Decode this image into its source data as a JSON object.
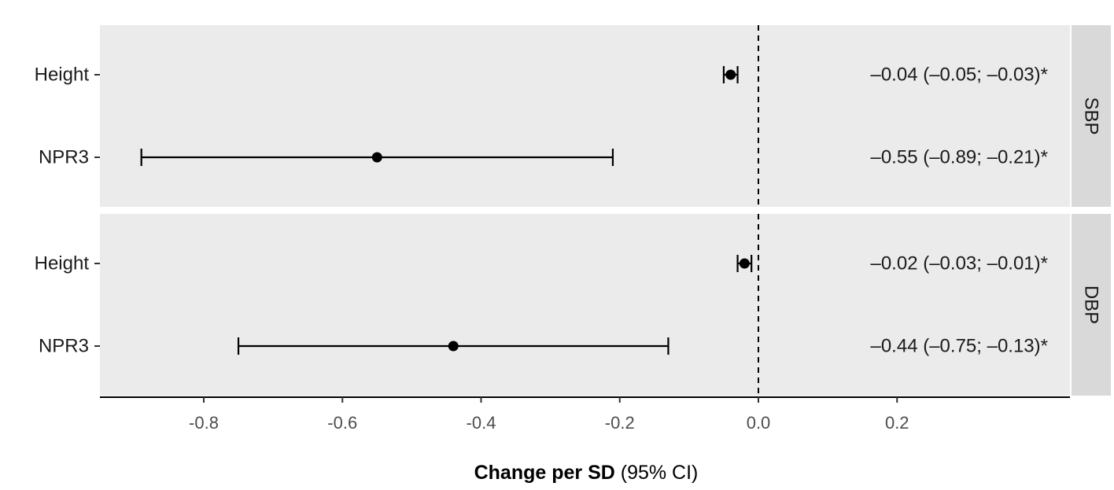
{
  "chart_data": {
    "type": "scatter",
    "subtype": "forest-plot",
    "title": "",
    "xlabel_bold": "Change per SD",
    "xlabel_normal": " (95% CI)",
    "ylabel": "",
    "xlim": [
      -0.95,
      0.47
    ],
    "x_ticks": [
      -0.8,
      -0.6,
      -0.4,
      -0.2,
      0.0,
      0.2
    ],
    "x_tick_labels": [
      "-0.8",
      "-0.6",
      "-0.4",
      "-0.2",
      "0.0",
      "0.2"
    ],
    "reference_line": 0.0,
    "panel_background": "#ebebeb",
    "strip_background": "#d9d9d9",
    "point_color": "#000000",
    "grid": false,
    "panels": [
      {
        "strip_label": "SBP",
        "rows": [
          {
            "label": "Height",
            "estimate": -0.04,
            "lower": -0.05,
            "upper": -0.03,
            "annotation": "–0.04 (–0.05; –0.03)*"
          },
          {
            "label": "NPR3",
            "estimate": -0.55,
            "lower": -0.89,
            "upper": -0.21,
            "annotation": "–0.55 (–0.89; –0.21)*"
          }
        ]
      },
      {
        "strip_label": "DBP",
        "rows": [
          {
            "label": "Height",
            "estimate": -0.02,
            "lower": -0.03,
            "upper": -0.01,
            "annotation": "–0.02 (–0.03; –0.01)*"
          },
          {
            "label": "NPR3",
            "estimate": -0.44,
            "lower": -0.75,
            "upper": -0.13,
            "annotation": "–0.44 (–0.75; –0.13)*"
          }
        ]
      }
    ]
  }
}
